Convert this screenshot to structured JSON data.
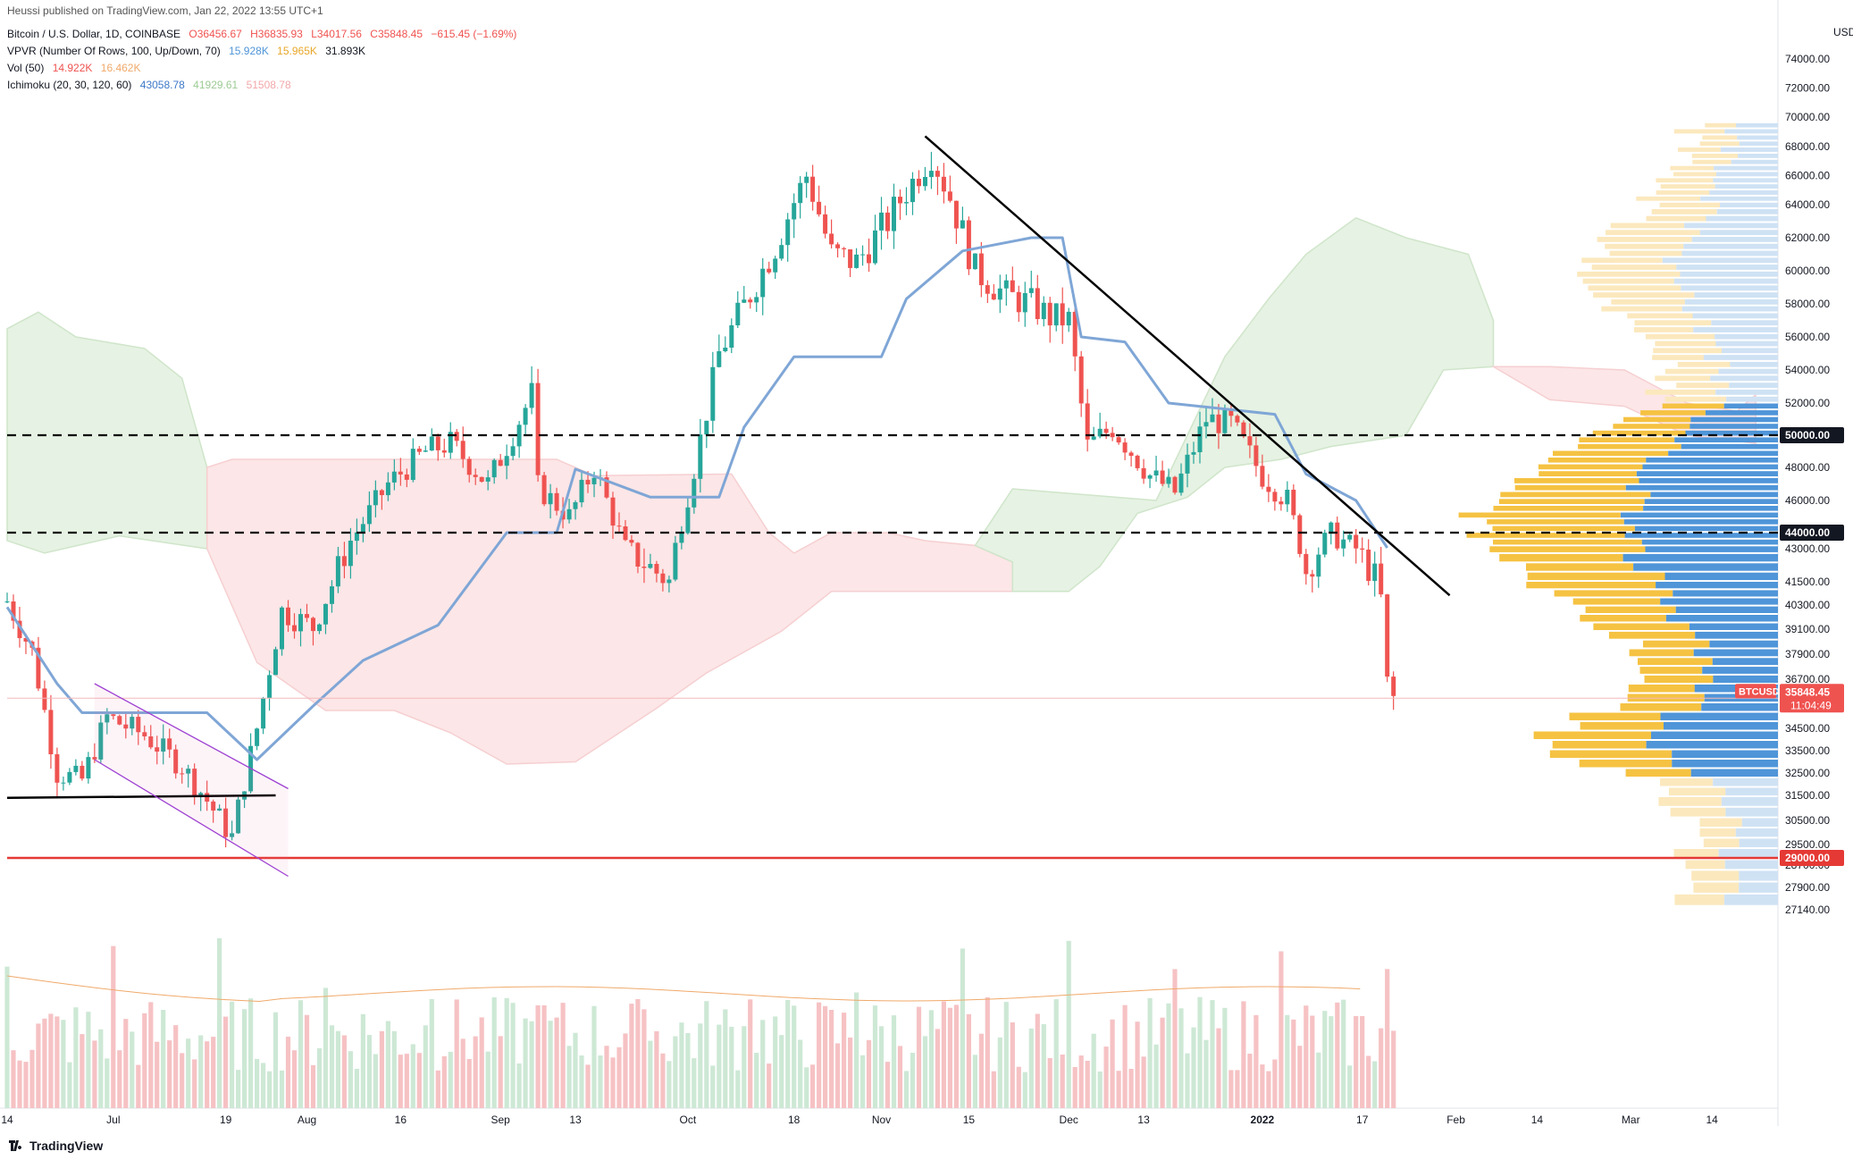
{
  "watermark": "Heussi published on TradingView.com, Jan 22, 2022 13:55 UTC+1",
  "legend": {
    "symbol": "Bitcoin / U.S. Dollar, 1D, COINBASE",
    "ohlc": {
      "o": "O36456.67",
      "h": "H36835.93",
      "l": "L34017.56",
      "c": "C35848.45",
      "chg": "−615.45 (−1.69%)"
    },
    "vpvr": {
      "label": "VPVR (Number Of Rows, 100, Up/Down, 70)",
      "up": "15.928K",
      "down": "15.965K",
      "total": "31.893K"
    },
    "vol": {
      "label": "Vol (50)",
      "v1": "14.922K",
      "v2": "16.462K"
    },
    "ichimoku": {
      "label": "Ichimoku (20, 30, 120, 60)",
      "v1": "43058.78",
      "v2": "41929.61",
      "v3": "51508.78"
    }
  },
  "currency": "USD",
  "brand": "TradingView",
  "price_tag": {
    "symbol": "BTCUSD",
    "price": "35848.45",
    "countdown": "11:04:49"
  },
  "colors": {
    "up": "#26a69a",
    "down": "#ef5350",
    "kijun": "#7fa6d6",
    "cloud_bull": "#e6f2e3",
    "cloud_bear": "#fce6e7",
    "vp_up": "#f5c242",
    "vp_down": "#4f95d8",
    "ma": "#f0a96a",
    "level_red": "#e53935"
  },
  "chart_data": {
    "type": "candlestick",
    "title": "Bitcoin / U.S. Dollar, 1D, COINBASE",
    "ylim": [
      26300,
      76000
    ],
    "x_range": [
      "2021-06-14",
      "2022-03-26"
    ],
    "y_ticks": [
      74000,
      72000,
      70000,
      68000,
      66000,
      64000,
      62000,
      60000,
      58000,
      56000,
      54000,
      52000,
      48000,
      46000,
      43000,
      41500,
      40300,
      39100,
      37900,
      36700,
      34500,
      33500,
      32500,
      31500,
      30500,
      29500,
      28700,
      27900,
      27140
    ],
    "x_tick_labels": [
      {
        "date": "2021-06-14",
        "label": "14"
      },
      {
        "date": "2021-07-01",
        "label": "Jul"
      },
      {
        "date": "2021-07-19",
        "label": "19"
      },
      {
        "date": "2021-08-01",
        "label": "Aug"
      },
      {
        "date": "2021-08-16",
        "label": "16"
      },
      {
        "date": "2021-09-01",
        "label": "Sep"
      },
      {
        "date": "2021-09-13",
        "label": "13"
      },
      {
        "date": "2021-10-01",
        "label": "Oct"
      },
      {
        "date": "2021-10-18",
        "label": "18"
      },
      {
        "date": "2021-11-01",
        "label": "Nov"
      },
      {
        "date": "2021-11-15",
        "label": "15"
      },
      {
        "date": "2021-12-01",
        "label": "Dec"
      },
      {
        "date": "2021-12-13",
        "label": "13"
      },
      {
        "date": "2022-01-01",
        "label": "2022"
      },
      {
        "date": "2022-01-17",
        "label": "17"
      },
      {
        "date": "2022-02-01",
        "label": "Feb"
      },
      {
        "date": "2022-02-14",
        "label": "14"
      },
      {
        "date": "2022-03-01",
        "label": "Mar"
      },
      {
        "date": "2022-03-14",
        "label": "14"
      }
    ],
    "horizontal_levels": [
      {
        "price": 50000,
        "style": "dashed",
        "label": "50000.00"
      },
      {
        "price": 44000,
        "style": "dashed",
        "label": "44000.00"
      },
      {
        "price": 29000,
        "style": "solid",
        "color": "#e53935",
        "label": "29000.00"
      }
    ],
    "trendlines": [
      {
        "from": [
          "2021-11-08",
          68700
        ],
        "to": [
          "2022-01-31",
          40800
        ]
      },
      {
        "from": [
          "2021-06-14",
          31400
        ],
        "to": [
          "2021-07-27",
          31500
        ]
      }
    ],
    "channel": [
      {
        "from": [
          "2021-06-28",
          36500
        ],
        "to": [
          "2021-07-29",
          31800
        ]
      },
      {
        "from": [
          "2021-06-28",
          33100
        ],
        "to": [
          "2021-07-29",
          28300
        ]
      }
    ],
    "close_path": [
      [
        "2021-06-14",
        40500
      ],
      [
        "2021-06-18",
        38000
      ],
      [
        "2021-06-22",
        32500
      ],
      [
        "2021-06-26",
        32200
      ],
      [
        "2021-06-30",
        35000
      ],
      [
        "2021-07-06",
        34200
      ],
      [
        "2021-07-12",
        32800
      ],
      [
        "2021-07-20",
        29800
      ],
      [
        "2021-07-24",
        34500
      ],
      [
        "2021-07-28",
        40000
      ],
      [
        "2021-08-02",
        39200
      ],
      [
        "2021-08-08",
        43500
      ],
      [
        "2021-08-14",
        47000
      ],
      [
        "2021-08-20",
        49000
      ],
      [
        "2021-08-24",
        49500
      ],
      [
        "2021-08-30",
        47000
      ],
      [
        "2021-09-06",
        52500
      ],
      [
        "2021-09-07",
        46800
      ],
      [
        "2021-09-12",
        45000
      ],
      [
        "2021-09-16",
        48000
      ],
      [
        "2021-09-21",
        43000
      ],
      [
        "2021-09-28",
        41500
      ],
      [
        "2021-10-02",
        48000
      ],
      [
        "2021-10-06",
        55000
      ],
      [
        "2021-10-15",
        61500
      ],
      [
        "2021-10-20",
        66000
      ],
      [
        "2021-10-24",
        61000
      ],
      [
        "2021-10-28",
        60500
      ],
      [
        "2021-11-02",
        63000
      ],
      [
        "2021-11-09",
        67500
      ],
      [
        "2021-11-12",
        64500
      ],
      [
        "2021-11-16",
        60000
      ],
      [
        "2021-11-21",
        58500
      ],
      [
        "2021-11-25",
        58000
      ],
      [
        "2021-11-28",
        57200
      ],
      [
        "2021-12-01",
        57000
      ],
      [
        "2021-12-04",
        49300
      ],
      [
        "2021-12-08",
        50500
      ],
      [
        "2021-12-14",
        47500
      ],
      [
        "2021-12-18",
        46500
      ],
      [
        "2021-12-23",
        51000
      ],
      [
        "2021-12-27",
        50700
      ],
      [
        "2022-01-01",
        47500
      ],
      [
        "2022-01-05",
        46000
      ],
      [
        "2022-01-08",
        42000
      ],
      [
        "2022-01-12",
        43900
      ],
      [
        "2022-01-16",
        43000
      ],
      [
        "2022-01-19",
        41700
      ],
      [
        "2022-01-20",
        40600
      ],
      [
        "2022-01-21",
        36500
      ],
      [
        "2022-01-22",
        35848
      ]
    ],
    "ichimoku_kijun": [
      [
        "2021-06-14",
        40200
      ],
      [
        "2021-06-22",
        36500
      ],
      [
        "2021-06-26",
        35200
      ],
      [
        "2021-07-16",
        35200
      ],
      [
        "2021-07-24",
        33100
      ],
      [
        "2021-08-02",
        35500
      ],
      [
        "2021-08-10",
        37600
      ],
      [
        "2021-08-22",
        39300
      ],
      [
        "2021-09-02",
        44000
      ],
      [
        "2021-09-10",
        44000
      ],
      [
        "2021-09-13",
        47900
      ],
      [
        "2021-09-25",
        46200
      ],
      [
        "2021-10-06",
        46200
      ],
      [
        "2021-10-10",
        50500
      ],
      [
        "2021-10-18",
        54800
      ],
      [
        "2021-11-01",
        54800
      ],
      [
        "2021-11-05",
        58300
      ],
      [
        "2021-11-14",
        61200
      ],
      [
        "2021-11-25",
        62000
      ],
      [
        "2021-11-30",
        62000
      ],
      [
        "2021-12-03",
        56000
      ],
      [
        "2021-12-10",
        55700
      ],
      [
        "2021-12-17",
        52000
      ],
      [
        "2022-01-03",
        51300
      ],
      [
        "2022-01-08",
        47600
      ],
      [
        "2022-01-16",
        46000
      ],
      [
        "2022-01-21",
        43058
      ]
    ],
    "cloud": {
      "bullish_spans": [
        [
          "2021-06-14",
          "2021-07-16"
        ],
        [
          "2021-11-22",
          "2022-01-20"
        ]
      ],
      "bearish_spans": [
        [
          "2021-07-16",
          "2021-11-22"
        ],
        [
          "2022-01-20",
          "2022-03-20"
        ]
      ]
    },
    "volume_profile_note": "VPVR histogram on right side, up (yellow) / down (blue)",
    "last_price": 35848.45
  }
}
